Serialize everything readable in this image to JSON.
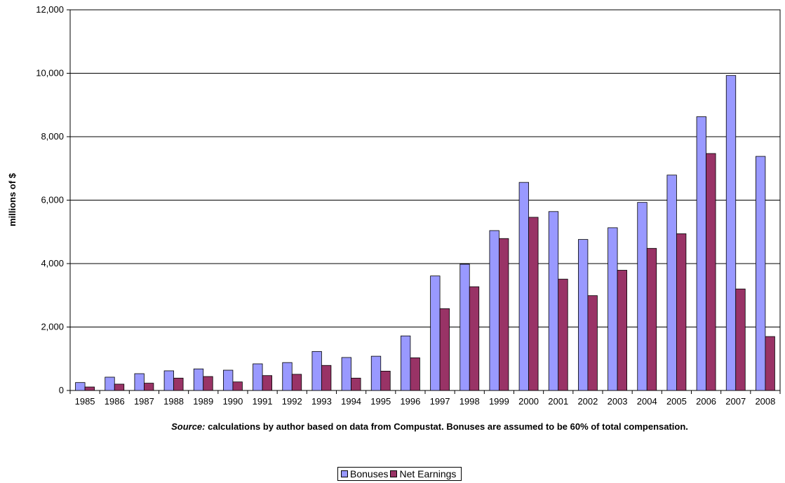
{
  "chart_data": {
    "type": "bar",
    "categories": [
      "1985",
      "1986",
      "1987",
      "1988",
      "1989",
      "1990",
      "1991",
      "1992",
      "1993",
      "1994",
      "1995",
      "1996",
      "1997",
      "1998",
      "1999",
      "2000",
      "2001",
      "2002",
      "2003",
      "2004",
      "2005",
      "2006",
      "2007",
      "2008"
    ],
    "series": [
      {
        "name": "Bonuses",
        "color": "#9999ff",
        "values": [
          250,
          420,
          530,
          620,
          680,
          640,
          840,
          880,
          1230,
          1040,
          1080,
          1720,
          3610,
          3980,
          5040,
          6560,
          5640,
          4760,
          5130,
          5930,
          6790,
          8630,
          9930,
          7380
        ]
      },
      {
        "name": "Net Earnings",
        "color": "#993366",
        "values": [
          110,
          200,
          230,
          390,
          440,
          270,
          470,
          510,
          790,
          390,
          610,
          1030,
          2580,
          3270,
          4790,
          5460,
          3510,
          2990,
          3790,
          4480,
          4940,
          7470,
          3200,
          1700
        ]
      }
    ],
    "ylabel": "millions of $",
    "ylim": [
      0,
      12000
    ],
    "yticks": [
      "0",
      "2,000",
      "4,000",
      "6,000",
      "8,000",
      "10,000",
      "12,000"
    ],
    "ytick_values": [
      0,
      2000,
      4000,
      6000,
      8000,
      10000,
      12000
    ],
    "grid": true,
    "legend_position": "bottom"
  },
  "source": {
    "label": "Source:",
    "text": "calculations by author based on data from Compustat. Bonuses are assumed to be 60% of total compensation."
  },
  "legend": {
    "items": [
      "Bonuses",
      "Net Earnings"
    ]
  },
  "colors": {
    "bonuses": "#9999ff",
    "net_earnings": "#993366",
    "grid": "#000000"
  }
}
